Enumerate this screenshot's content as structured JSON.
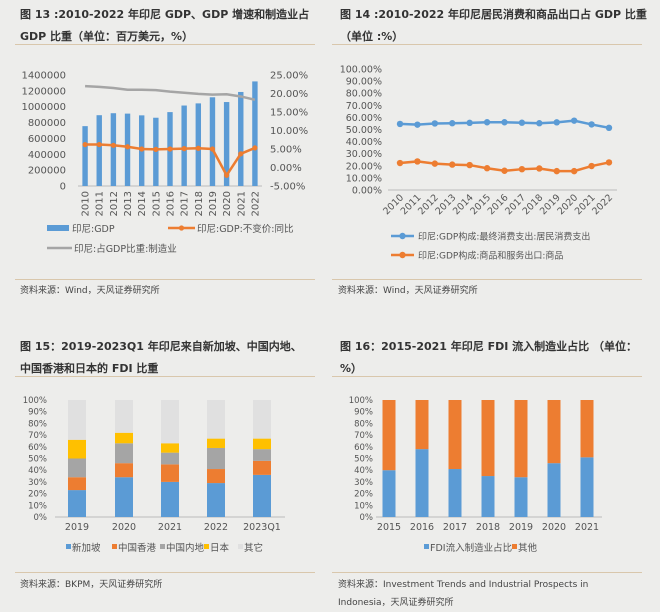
{
  "chart_data": [
    {
      "id": "fig13",
      "type": "bar+line",
      "title": "图 13 :2010-2022 年印尼 GDP、GDP 增速和制造业占 GDP 比重（单位：百万美元，%）",
      "categories": [
        "2010",
        "2011",
        "2012",
        "2013",
        "2014",
        "2015",
        "2016",
        "2017",
        "2018",
        "2019",
        "2020",
        "2021",
        "2022"
      ],
      "left_axis": {
        "ylim": [
          0,
          1400000
        ],
        "ticks": [
          "0",
          "200000",
          "400000",
          "600000",
          "800000",
          "1000000",
          "1200000",
          "1400000"
        ]
      },
      "right_axis": {
        "ylim": [
          -5,
          25
        ],
        "ticks": [
          "-5.00%",
          "0.00%",
          "5.00%",
          "10.00%",
          "15.00%",
          "20.00%",
          "25.00%"
        ]
      },
      "series": [
        {
          "name": "印尼:GDP",
          "kind": "bar",
          "axis": "left",
          "color": "#5b9bd5",
          "values": [
            755000,
            893000,
            918000,
            913000,
            891000,
            861000,
            932000,
            1015000,
            1042000,
            1119000,
            1059000,
            1186000,
            1319000
          ]
        },
        {
          "name": "印尼:GDP:不变价:同比",
          "kind": "line-marker",
          "axis": "right",
          "color": "#ed7d31",
          "values": [
            6.2,
            6.2,
            6.0,
            5.6,
            5.0,
            4.9,
            5.0,
            5.1,
            5.2,
            5.0,
            -2.1,
            3.7,
            5.3
          ]
        },
        {
          "name": "印尼:占GDP比重:制造业",
          "kind": "line",
          "axis": "right",
          "color": "#a5a5a5",
          "values": [
            22.0,
            21.8,
            21.5,
            21.0,
            21.0,
            20.9,
            20.5,
            20.2,
            19.9,
            19.7,
            19.8,
            19.2,
            18.3
          ]
        }
      ],
      "source": "资料来源：Wind，天风证券研究所"
    },
    {
      "id": "fig14",
      "type": "line",
      "title": "图 14 :2010-2022 年印尼居民消费和商品出口占 GDP 比重（单位 :%）",
      "categories": [
        "2010",
        "2011",
        "2012",
        "2013",
        "2014",
        "2015",
        "2016",
        "2017",
        "2018",
        "2019",
        "2020",
        "2021",
        "2022"
      ],
      "ylim": [
        0,
        100
      ],
      "ticks": [
        "0.00%",
        "10.00%",
        "20.00%",
        "30.00%",
        "40.00%",
        "50.00%",
        "60.00%",
        "70.00%",
        "80.00%",
        "90.00%",
        "100.00%"
      ],
      "series": [
        {
          "name": "印尼:GDP构成:最终消费支出:居民消费支出",
          "color": "#5b9bd5",
          "values": [
            54.6,
            54.0,
            55.0,
            55.2,
            55.5,
            56.0,
            56.0,
            55.6,
            55.2,
            55.9,
            57.3,
            54.2,
            51.4
          ]
        },
        {
          "name": "印尼:GDP构成:商品和服务出口:商品",
          "color": "#ed7d31",
          "values": [
            22.3,
            23.6,
            21.8,
            21.0,
            20.6,
            18.0,
            15.9,
            17.2,
            17.8,
            15.6,
            15.6,
            19.8,
            22.8
          ]
        }
      ],
      "source": "资料来源：Wind，天风证券研究所"
    },
    {
      "id": "fig15",
      "type": "bar",
      "stacked": true,
      "title": "图 15：2019-2023Q1 年印尼来自新加坡、中国内地、中国香港和日本的 FDI 比重",
      "categories": [
        "2019",
        "2020",
        "2021",
        "2022",
        "2023Q1"
      ],
      "ylim": [
        0,
        100
      ],
      "ticks": [
        "0%",
        "10%",
        "20%",
        "30%",
        "40%",
        "50%",
        "60%",
        "70%",
        "80%",
        "90%",
        "100%"
      ],
      "series": [
        {
          "name": "新加坡",
          "color": "#5b9bd5",
          "values": [
            23,
            34,
            30,
            29,
            36
          ]
        },
        {
          "name": "中国香港",
          "color": "#ed7d31",
          "values": [
            11,
            12,
            15,
            12,
            12
          ]
        },
        {
          "name": "中国内地",
          "color": "#a5a5a5",
          "values": [
            16,
            17,
            10,
            18,
            10
          ]
        },
        {
          "name": "日本",
          "color": "#ffc000",
          "values": [
            16,
            9,
            8,
            8,
            9
          ]
        },
        {
          "name": "其它",
          "color": "#e0e0e0",
          "values": [
            34,
            28,
            37,
            33,
            33
          ]
        }
      ],
      "source": "资料来源：BKPM，天风证券研究所"
    },
    {
      "id": "fig16",
      "type": "bar",
      "stacked": true,
      "title": "图 16：2015-2021 年印尼 FDI 流入制造业占比 （单位：%）",
      "categories": [
        "2015",
        "2016",
        "2017",
        "2018",
        "2019",
        "2020",
        "2021"
      ],
      "ylim": [
        0,
        100
      ],
      "ticks": [
        "0%",
        "10%",
        "20%",
        "30%",
        "40%",
        "50%",
        "60%",
        "70%",
        "80%",
        "90%",
        "100%"
      ],
      "series": [
        {
          "name": "FDI流入制造业占比",
          "color": "#5b9bd5",
          "values": [
            40,
            58,
            41,
            35,
            34,
            46,
            51
          ]
        },
        {
          "name": "其他",
          "color": "#ed7d31",
          "values": [
            60,
            42,
            59,
            65,
            66,
            54,
            49
          ]
        }
      ],
      "source": "资料来源：Investment Trends and Industrial Prospects in Indonesia，天风证券研究所"
    }
  ]
}
